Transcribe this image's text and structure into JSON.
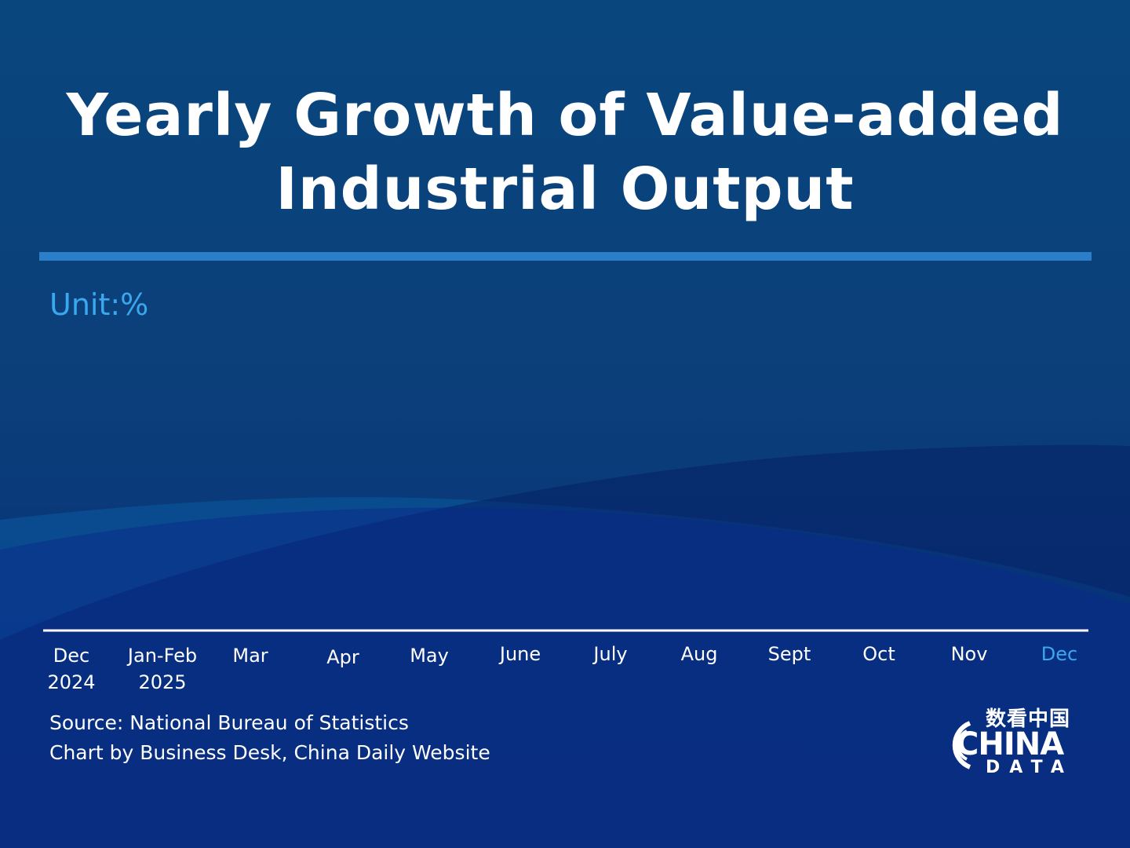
{
  "title_lines": [
    "Yearly Growth of Value-added",
    "Industrial Output"
  ],
  "unit_label": "Unit:%",
  "source": {
    "line1": "Source: National Bureau of Statistics",
    "line2": "Chart by Business Desk, China Daily Website"
  },
  "logo": {
    "cn": "数看中国",
    "name": "CHINA",
    "sub": "DATA"
  },
  "colors": {
    "accent": "#2a7fc8",
    "highlight": "#3aa8ee",
    "axis": "#ffffff",
    "text": "#ffffff"
  },
  "chart_data": {
    "type": "line",
    "title": "Yearly Growth of Value-added Industrial Output",
    "unit": "Unit:%",
    "categories": [
      [
        "Dec",
        "2024"
      ],
      [
        "Jan-Feb",
        "2025"
      ],
      [
        "Mar",
        ""
      ],
      [
        "Apr",
        ""
      ],
      [
        "May",
        ""
      ],
      [
        "June",
        ""
      ],
      [
        "July",
        ""
      ],
      [
        "Aug",
        ""
      ],
      [
        "Sept",
        ""
      ],
      [
        "Oct",
        ""
      ],
      [
        "Nov",
        ""
      ],
      [
        "Dec",
        ""
      ]
    ],
    "series": [],
    "highlight_category_index": 11,
    "grid": false,
    "legend": "none"
  }
}
